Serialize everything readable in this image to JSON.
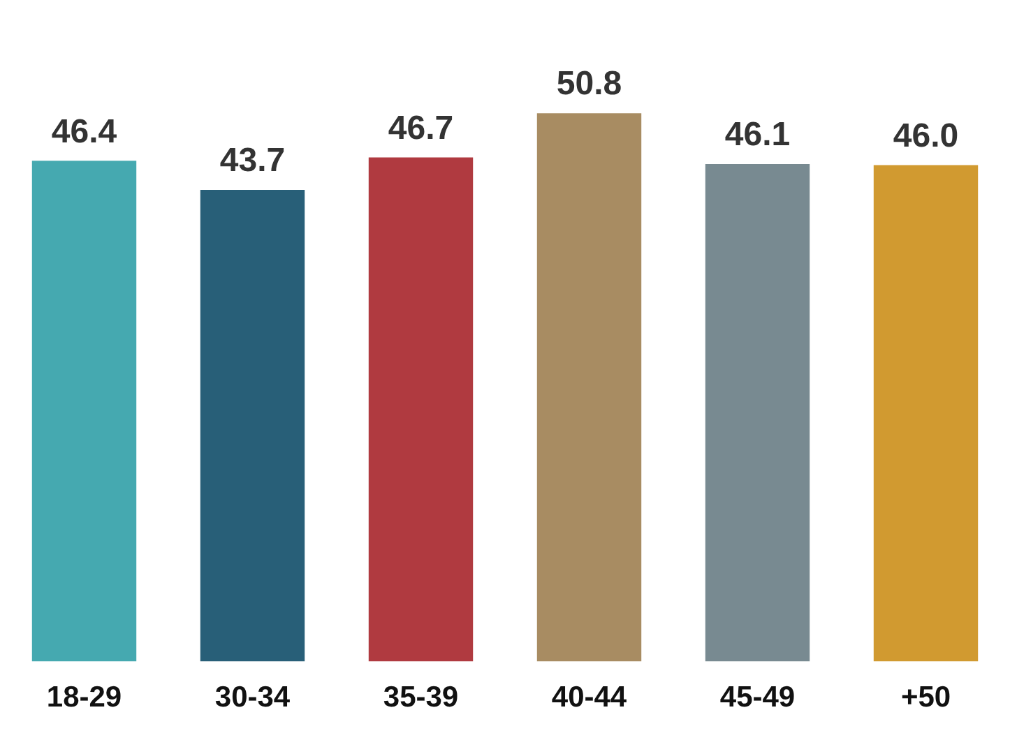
{
  "chart_data": {
    "type": "bar",
    "categories": [
      "18-29",
      "30-34",
      "35-39",
      "40-44",
      "45-49",
      "+50"
    ],
    "values": [
      46.4,
      43.7,
      46.7,
      50.8,
      46.1,
      46.0
    ],
    "colors": [
      "#45a9b0",
      "#285f78",
      "#b03a40",
      "#a88c62",
      "#788a91",
      "#d19a30"
    ],
    "value_labels": [
      "46.4",
      "43.7",
      "46.7",
      "50.8",
      "46.1",
      "46.0"
    ],
    "tick_labels": "x",
    "grid": false,
    "legend": false
  }
}
